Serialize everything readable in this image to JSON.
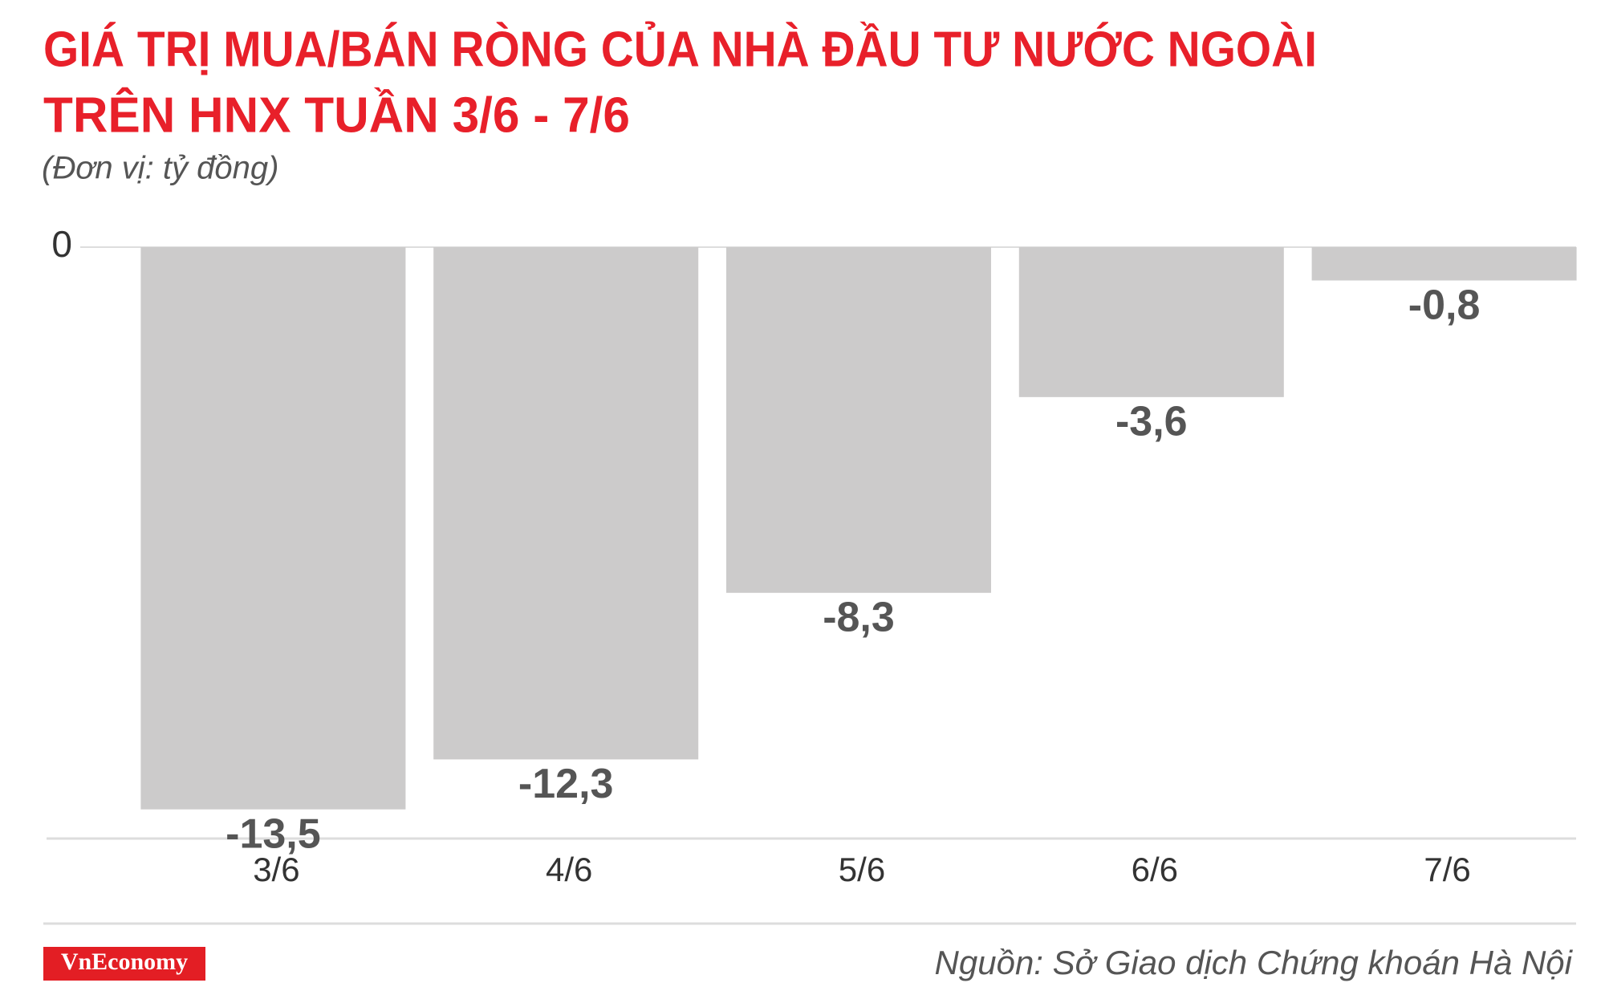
{
  "chart_data": {
    "type": "bar",
    "title": [
      "GIÁ TRỊ MUA/BÁN RÒNG CỦA NHÀ ĐẦU TƯ NƯỚC NGOÀI",
      "TRÊN HNX TUẦN 3/6 - 7/6"
    ],
    "subtitle": "(Đơn vị: tỷ đồng)",
    "categories": [
      "3/6",
      "4/6",
      "5/6",
      "6/6",
      "7/6"
    ],
    "values": [
      -13.5,
      -12.3,
      -8.3,
      -3.6,
      -0.8
    ],
    "value_labels": [
      "-13,5",
      "-12,3",
      "-8,3",
      "-3,6",
      "-0,8"
    ],
    "color": "#cccbcb",
    "ylim": [
      -14.2,
      0
    ],
    "yticks": [
      0
    ],
    "source": "Nguồn: Sở Giao dịch Chứng khoán Hà Nội",
    "brand": "VnEconomy"
  }
}
